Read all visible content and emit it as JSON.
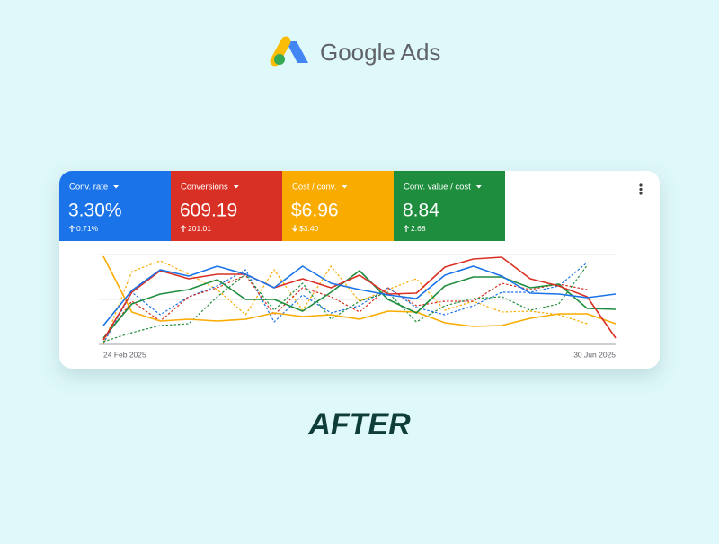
{
  "header": {
    "brand": "Google Ads"
  },
  "metrics": [
    {
      "label": "Conv. rate",
      "value": "3.30%",
      "change": "0.71%",
      "color": "#1a73e8"
    },
    {
      "label": "Conversions",
      "value": "609.19",
      "change": "201.01",
      "color": "#d93025"
    },
    {
      "label": "Cost / conv.",
      "value": "$6.96",
      "change": "$3.40",
      "color": "#f9ab00"
    },
    {
      "label": "Conv. value / cost",
      "value": "8.84",
      "change": "2.68",
      "color": "#1e8e3e"
    }
  ],
  "chart_data": {
    "type": "line",
    "categories": [
      "24 Feb 2025",
      null,
      null,
      null,
      null,
      null,
      null,
      null,
      null,
      null,
      null,
      null,
      null,
      null,
      null,
      null,
      null,
      null,
      "30 Jun 2025"
    ],
    "ylim": [
      0,
      100
    ],
    "yticks": [
      0,
      50,
      100
    ],
    "grid": true,
    "series": [
      {
        "color": "#f9ab00",
        "dashed": true,
        "values": [
          0,
          81,
          93,
          78,
          61,
          33,
          83,
          38,
          87,
          48,
          61,
          73,
          38,
          48,
          36,
          37,
          33,
          23,
          null
        ]
      },
      {
        "color": "#1a73e8",
        "dashed": true,
        "values": [
          1,
          58,
          33,
          53,
          65,
          83,
          25,
          55,
          35,
          43,
          63,
          41,
          33,
          43,
          58,
          58,
          65,
          91,
          null
        ]
      },
      {
        "color": "#d93025",
        "dashed": true,
        "values": [
          5,
          48,
          26,
          53,
          63,
          77,
          33,
          63,
          53,
          36,
          63,
          43,
          48,
          48,
          68,
          61,
          67,
          61,
          null
        ]
      },
      {
        "color": "#1e8e3e",
        "dashed": true,
        "values": [
          3,
          13,
          21,
          23,
          53,
          78,
          38,
          68,
          28,
          48,
          58,
          25,
          43,
          51,
          53,
          38,
          45,
          88,
          null
        ]
      },
      {
        "color": "#f9ab00",
        "dashed": false,
        "values": [
          98,
          36,
          26,
          28,
          26,
          28,
          35,
          31,
          33,
          28,
          37,
          36,
          24,
          20,
          21,
          29,
          34,
          34,
          23
        ]
      },
      {
        "color": "#1e8e3e",
        "dashed": false,
        "values": [
          7,
          45,
          56,
          61,
          72,
          50,
          50,
          37,
          58,
          82,
          50,
          35,
          65,
          75,
          75,
          63,
          67,
          40,
          39
        ]
      },
      {
        "color": "#d93025",
        "dashed": false,
        "values": [
          5,
          58,
          82,
          73,
          78,
          78,
          63,
          73,
          63,
          77,
          56,
          57,
          86,
          95,
          97,
          73,
          65,
          53,
          7
        ]
      },
      {
        "color": "#1a73e8",
        "dashed": false,
        "values": [
          21,
          60,
          83,
          76,
          87,
          78,
          63,
          87,
          68,
          61,
          55,
          51,
          77,
          87,
          76,
          57,
          56,
          52,
          56
        ]
      }
    ]
  },
  "caption": "AFTER"
}
